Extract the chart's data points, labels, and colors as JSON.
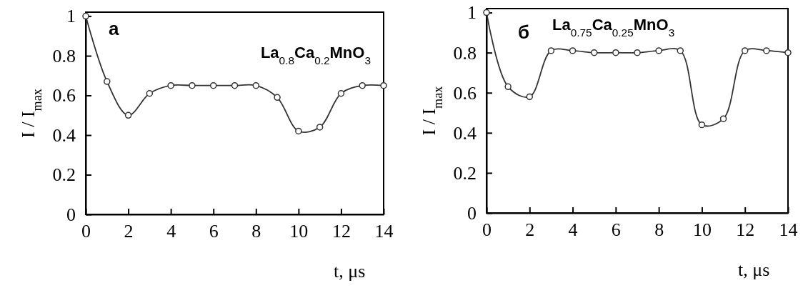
{
  "chart_data": [
    {
      "type": "line",
      "xlabel": "t, μs",
      "ylabel": "I / I$_{max}$",
      "annotations": [
        "а",
        "La$_{0.8}$Ca$_{0.2}$MnO$_{3}$"
      ],
      "x": [
        0,
        1,
        2,
        3,
        4,
        5,
        6,
        7,
        8,
        9,
        10,
        11,
        12,
        13,
        14
      ],
      "xlim": [
        0,
        14
      ],
      "xticks": [
        0,
        2,
        4,
        6,
        8,
        10,
        12,
        14
      ],
      "ylim": [
        0,
        1.02
      ],
      "yticks": [
        0,
        0.2,
        0.4,
        0.6,
        0.8,
        1
      ],
      "grid": false,
      "marker": "circle",
      "line_style": "solid",
      "series": [
        {
          "color": "#333333",
          "values": [
            1,
            0.67,
            0.5,
            0.61,
            0.65,
            0.65,
            0.65,
            0.65,
            0.65,
            0.59,
            0.42,
            0.44,
            0.61,
            0.65,
            0.65
          ]
        }
      ]
    },
    {
      "type": "line",
      "xlabel": "t, μs",
      "ylabel": "I / I$_{max}$",
      "annotations": [
        "б",
        "La$_{0.75}$Ca$_{0.25}$MnO$_{3}$"
      ],
      "x": [
        0,
        1,
        2,
        3,
        4,
        5,
        6,
        7,
        8,
        9,
        10,
        11,
        12,
        13,
        14
      ],
      "xlim": [
        0,
        14
      ],
      "xticks": [
        0,
        2,
        4,
        6,
        8,
        10,
        12,
        14
      ],
      "ylim": [
        0,
        1.02
      ],
      "yticks": [
        0,
        0.2,
        0.4,
        0.6,
        0.8,
        1
      ],
      "grid": false,
      "marker": "circle",
      "line_style": "solid",
      "series": [
        {
          "color": "#333333",
          "values": [
            1,
            0.63,
            0.58,
            0.81,
            0.81,
            0.8,
            0.8,
            0.8,
            0.81,
            0.81,
            0.44,
            0.47,
            0.81,
            0.81,
            0.8
          ]
        }
      ]
    }
  ]
}
